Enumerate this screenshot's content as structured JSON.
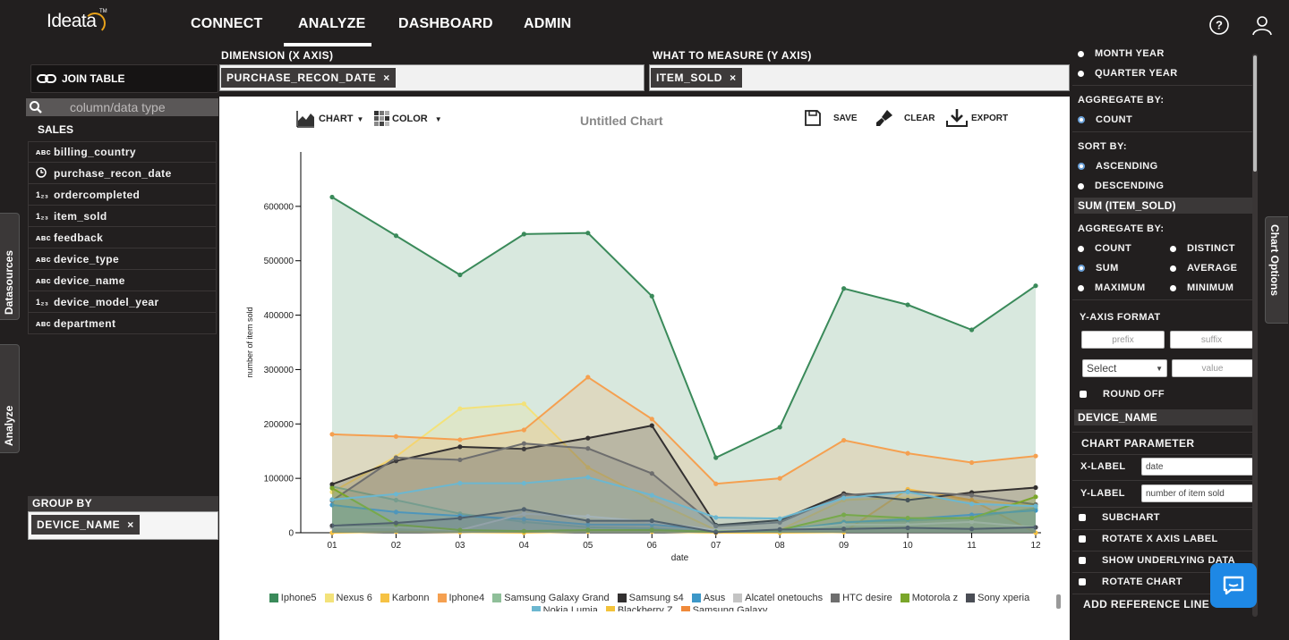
{
  "nav": {
    "logo": "Ideata",
    "logo_tm": "TM",
    "items": [
      "CONNECT",
      "ANALYZE",
      "DASHBOARD",
      "ADMIN"
    ],
    "active": "ANALYZE"
  },
  "left": {
    "join_table": "JOIN TABLE",
    "search_placeholder": "column/data type",
    "group_title": "SALES",
    "fields": [
      {
        "name": "billing_country",
        "type": "ABC"
      },
      {
        "name": "purchase_recon_date",
        "type": "clock"
      },
      {
        "name": "ordercompleted",
        "type": "123"
      },
      {
        "name": "item_sold",
        "type": "123"
      },
      {
        "name": "feedback",
        "type": "ABC"
      },
      {
        "name": "device_type",
        "type": "ABC"
      },
      {
        "name": "device_name",
        "type": "ABC"
      },
      {
        "name": "device_model_year",
        "type": "123"
      },
      {
        "name": "department",
        "type": "ABC"
      }
    ],
    "datasources_tab": "Datasources",
    "analyze_tab": "Analyze",
    "group_by_label": "GROUP BY",
    "group_by_chip": "DEVICE_NAME"
  },
  "dimension": {
    "x_label": "DIMENSION (X AXIS)",
    "x_chip": "PURCHASE_RECON_DATE",
    "y_label": "WHAT TO MEASURE (Y AXIS)",
    "y_chip": "ITEM_SOLD",
    "chip_close": "×"
  },
  "toolbar": {
    "chart": "CHART",
    "color": "COLOR",
    "title": "Untitled Chart",
    "save": "SAVE",
    "clear": "CLEAR",
    "export": "EXPORT"
  },
  "right": {
    "month_year": "MONTH YEAR",
    "quarter_year": "QUARTER YEAR",
    "aggregate_by_1": "AGGREGATE BY:",
    "count_1": "COUNT",
    "sort_by": "SORT BY:",
    "ascending": "ASCENDING",
    "descending": "DESCENDING",
    "sum_section": "SUM (ITEM_SOLD)",
    "aggregate_by_2": "AGGREGATE BY:",
    "agg_options": [
      "COUNT",
      "DISTINCT",
      "SUM",
      "AVERAGE",
      "MAXIMUM",
      "MINIMUM"
    ],
    "agg_selected": "SUM",
    "y_axis_format": "Y-AXIS FORMAT",
    "prefix_placeholder": "prefix",
    "suffix_placeholder": "suffix",
    "select_label": "Select",
    "value_placeholder": "value",
    "round_off": "ROUND OFF",
    "device_name_section": "DEVICE_NAME",
    "chart_parameter": "CHART PARAMETER",
    "x_label_title": "X-LABEL",
    "x_label_value": "date",
    "y_label_title": "Y-LABEL",
    "y_label_value": "number of item sold",
    "subchart": "SUBCHART",
    "rotate_x": "ROTATE X AXIS LABEL",
    "show_underlying": "SHOW UNDERLYING DATA",
    "rotate_chart": "ROTATE CHART",
    "add_reference": "ADD REFERENCE LINE",
    "chart_options_tab": "Chart Options"
  },
  "chart_data": {
    "type": "area",
    "xlabel": "date",
    "ylabel": "number of item sold",
    "x": [
      "01",
      "02",
      "03",
      "04",
      "05",
      "06",
      "07",
      "08",
      "09",
      "10",
      "11",
      "12"
    ],
    "ylim": [
      0,
      700000
    ],
    "yticks": [
      0,
      100000,
      200000,
      300000,
      400000,
      500000,
      600000
    ],
    "series": [
      {
        "name": "Iphone5",
        "color": "#3a8a5a",
        "values": [
          617000,
          546000,
          474000,
          549000,
          551000,
          435000,
          138000,
          194000,
          449000,
          419000,
          373000,
          454000
        ]
      },
      {
        "name": "Nexus 6",
        "color": "#f3e27a",
        "values": [
          75000,
          140000,
          228000,
          237000,
          120000,
          60000,
          5000,
          5000,
          60000,
          65000,
          60000,
          50000
        ]
      },
      {
        "name": "Karbonn",
        "color": "#f6c244",
        "values": [
          0,
          2000,
          1000,
          0,
          2000,
          2000,
          0,
          0,
          1000,
          80000,
          60000,
          0
        ]
      },
      {
        "name": "Iphone4",
        "color": "#f5a050",
        "values": [
          181000,
          177000,
          171000,
          189000,
          286000,
          209000,
          90000,
          100000,
          170000,
          146000,
          129000,
          141000
        ]
      },
      {
        "name": "Samsung Galaxy Grand",
        "color": "#8fbf99",
        "values": [
          85000,
          60000,
          35000,
          20000,
          10000,
          8000,
          2000,
          3000,
          20000,
          22000,
          28000,
          45000
        ]
      },
      {
        "name": "Samsung s4",
        "color": "#333030",
        "values": [
          89000,
          132000,
          158000,
          154000,
          174000,
          197000,
          14000,
          23000,
          72000,
          60000,
          74000,
          83000
        ]
      },
      {
        "name": "Asus",
        "color": "#3c97c8",
        "values": [
          51000,
          38000,
          31000,
          25000,
          15000,
          15000,
          5000,
          5000,
          19000,
          25000,
          33000,
          41000
        ]
      },
      {
        "name": "Alcatel onetouchs",
        "color": "#c4c4c4",
        "values": [
          10000,
          10000,
          5000,
          35000,
          30000,
          20000,
          5000,
          5000,
          15000,
          15000,
          20000,
          10000
        ]
      },
      {
        "name": "HTC desire",
        "color": "#6e6e6e",
        "values": [
          59000,
          138000,
          134000,
          164000,
          155000,
          109000,
          12000,
          19000,
          69000,
          76000,
          69000,
          52000
        ]
      },
      {
        "name": "Motorola z",
        "color": "#7aa62a",
        "values": [
          82000,
          15000,
          5000,
          3000,
          5000,
          5000,
          2000,
          5000,
          33000,
          27000,
          27000,
          66000
        ]
      },
      {
        "name": "Sony xperia",
        "color": "#4a4d55",
        "values": [
          13000,
          18000,
          27000,
          43000,
          22000,
          22000,
          1000,
          6000,
          7000,
          9000,
          7000,
          10000
        ]
      },
      {
        "name": "Nokia Lumia",
        "color": "#6cb7d0",
        "values": [
          61000,
          71000,
          91000,
          91000,
          102000,
          69000,
          28000,
          26000,
          64000,
          75000,
          53000,
          49000
        ]
      },
      {
        "name": "Blackberry Z",
        "color": "#f3c33a",
        "values": [
          0,
          0,
          0,
          0,
          0,
          0,
          0,
          0,
          0,
          0,
          0,
          0
        ]
      },
      {
        "name": "Samsung Galaxy",
        "color": "#f08a3a",
        "values": [
          0,
          0,
          0,
          0,
          0,
          0,
          0,
          0,
          0,
          0,
          0,
          0
        ]
      }
    ],
    "legend_labels": [
      "Iphone5",
      "Nexus 6",
      "Karbonn",
      "Iphone4",
      "Samsung Galaxy Grand",
      "Samsung s4",
      "Asus",
      "Alcatel onetouchs",
      "HTC desire",
      "Motorola z",
      "Sony xperia",
      "Nokia Lumia",
      "Blackberry Z",
      "Samsung Galaxy"
    ],
    "grid": false
  }
}
